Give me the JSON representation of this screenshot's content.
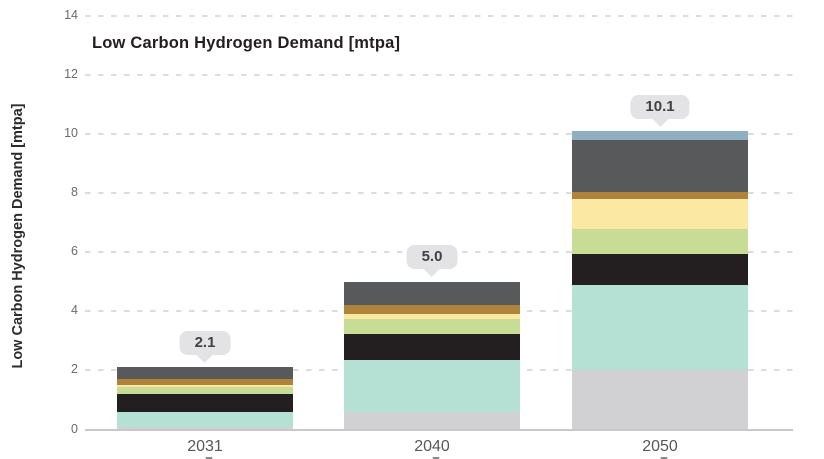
{
  "title": "Low Carbon Hydrogen Demand [mtpa]",
  "y_axis": {
    "label": "Low Carbon Hydrogen Demand [mtpa]",
    "tick_labels": [
      "0",
      "2",
      "4",
      "6",
      "8",
      "10",
      "12",
      "14"
    ]
  },
  "x_axis": {
    "tick_labels": [
      "2031",
      "2040",
      "2050"
    ]
  },
  "value_callouts": [
    "2.1",
    "5.0",
    "10.1"
  ],
  "chart_data": {
    "type": "bar",
    "stacked": true,
    "title": "Low Carbon Hydrogen Demand [mtpa]",
    "xlabel": "",
    "ylabel": "Low Carbon Hydrogen Demand [mtpa]",
    "categories": [
      "2031",
      "2040",
      "2050"
    ],
    "totals": [
      2.1,
      5.0,
      10.1
    ],
    "ylim": [
      0,
      14
    ],
    "y_ticks": [
      0,
      2,
      4,
      6,
      8,
      10,
      12,
      14
    ],
    "grid": "horizontal-dashed",
    "legend_position": "none",
    "series": [
      {
        "name": "light-gray",
        "color": "#d1d1d3",
        "values": [
          0.1,
          0.6,
          2.0
        ]
      },
      {
        "name": "teal",
        "color": "#b5e1d4",
        "values": [
          0.5,
          1.75,
          2.9
        ]
      },
      {
        "name": "black",
        "color": "#231f20",
        "values": [
          0.6,
          0.9,
          1.05
        ]
      },
      {
        "name": "green",
        "color": "#c9dc96",
        "values": [
          0.25,
          0.5,
          0.85
        ]
      },
      {
        "name": "yellow",
        "color": "#fbe9a3",
        "values": [
          0.05,
          0.15,
          1.0
        ]
      },
      {
        "name": "ochre",
        "color": "#b0833c",
        "values": [
          0.2,
          0.3,
          0.25
        ]
      },
      {
        "name": "dark-gray",
        "color": "#58595b",
        "values": [
          0.4,
          0.8,
          1.75
        ]
      },
      {
        "name": "blue-gray",
        "color": "#8fafc1",
        "values": [
          0.0,
          0.0,
          0.3
        ]
      }
    ]
  },
  "colors": {
    "gridline": "#dcdcdc",
    "axis_line": "#c8c8ca",
    "callout_bg": "#e3e3e5",
    "callout_text": "#414042",
    "title_text": "#231f20",
    "tick_text": "#6a6b6d"
  }
}
